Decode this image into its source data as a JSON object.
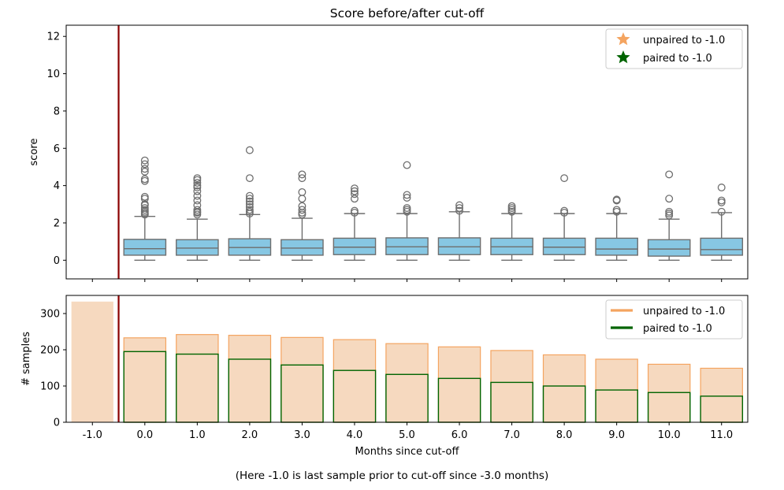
{
  "footnote": "(Here -1.0 is last sample prior to cut-off since -3.0 months)",
  "colors": {
    "box_fill": "#87c7e3",
    "box_edge": "#6e6e6e",
    "cutoff_line": "#8b0000",
    "unpaired": "#f4a460",
    "unpaired_fill": "#f6d9bf",
    "paired": "#006400"
  },
  "chart_data": [
    {
      "type": "box",
      "title": "Score before/after cut-off",
      "xlabel": "",
      "ylabel": "score",
      "ylim": [
        -1,
        12.6
      ],
      "yticks": [
        0,
        2,
        4,
        6,
        8,
        10,
        12
      ],
      "categories": [
        "-1.0",
        "0.0",
        "1.0",
        "2.0",
        "3.0",
        "4.0",
        "5.0",
        "6.0",
        "7.0",
        "8.0",
        "9.0",
        "10.0",
        "11.0"
      ],
      "cutoff_between": [
        "-1.0",
        "0.0"
      ],
      "boxes": [
        {
          "category": "-1.0",
          "present": false
        },
        {
          "category": "0.0",
          "present": true,
          "whisker_low": 0,
          "q1": 0.27,
          "median": 0.62,
          "q3": 1.12,
          "whisker_high": 2.35,
          "outliers": [
            2.45,
            2.52,
            2.6,
            2.7,
            2.8,
            2.95,
            3.0,
            3.3,
            3.4,
            4.25,
            4.35,
            4.75,
            4.9,
            5.15,
            5.35
          ]
        },
        {
          "category": "1.0",
          "present": true,
          "whisker_low": 0,
          "q1": 0.27,
          "median": 0.65,
          "q3": 1.1,
          "whisker_high": 2.2,
          "outliers": [
            2.45,
            2.55,
            2.6,
            2.7,
            2.95,
            3.2,
            3.45,
            3.7,
            3.9,
            4.0,
            4.15,
            4.3,
            4.4
          ]
        },
        {
          "category": "2.0",
          "present": true,
          "whisker_low": 0,
          "q1": 0.27,
          "median": 0.68,
          "q3": 1.15,
          "whisker_high": 2.45,
          "outliers": [
            2.5,
            2.6,
            2.7,
            2.85,
            3.0,
            3.15,
            3.3,
            3.45,
            4.4,
            5.9
          ]
        },
        {
          "category": "3.0",
          "present": true,
          "whisker_low": 0,
          "q1": 0.27,
          "median": 0.65,
          "q3": 1.1,
          "whisker_high": 2.25,
          "outliers": [
            2.45,
            2.55,
            2.7,
            2.9,
            3.3,
            3.65,
            4.4,
            4.6
          ]
        },
        {
          "category": "4.0",
          "present": true,
          "whisker_low": 0,
          "q1": 0.3,
          "median": 0.7,
          "q3": 1.18,
          "whisker_high": 2.5,
          "outliers": [
            2.55,
            2.65,
            3.3,
            3.55,
            3.7,
            3.85
          ]
        },
        {
          "category": "5.0",
          "present": true,
          "whisker_low": 0,
          "q1": 0.3,
          "median": 0.72,
          "q3": 1.2,
          "whisker_high": 2.5,
          "outliers": [
            2.6,
            2.7,
            2.8,
            3.35,
            3.5,
            5.1
          ]
        },
        {
          "category": "6.0",
          "present": true,
          "whisker_low": 0,
          "q1": 0.3,
          "median": 0.72,
          "q3": 1.2,
          "whisker_high": 2.6,
          "outliers": [
            2.65,
            2.8,
            2.95
          ]
        },
        {
          "category": "7.0",
          "present": true,
          "whisker_low": 0,
          "q1": 0.3,
          "median": 0.72,
          "q3": 1.18,
          "whisker_high": 2.5,
          "outliers": [
            2.6,
            2.7,
            2.8,
            2.9
          ]
        },
        {
          "category": "8.0",
          "present": true,
          "whisker_low": 0,
          "q1": 0.3,
          "median": 0.7,
          "q3": 1.18,
          "whisker_high": 2.5,
          "outliers": [
            2.55,
            2.65,
            4.4
          ]
        },
        {
          "category": "9.0",
          "present": true,
          "whisker_low": 0,
          "q1": 0.27,
          "median": 0.6,
          "q3": 1.18,
          "whisker_high": 2.5,
          "outliers": [
            2.6,
            2.7,
            3.2,
            3.25
          ]
        },
        {
          "category": "10.0",
          "present": true,
          "whisker_low": 0,
          "q1": 0.22,
          "median": 0.6,
          "q3": 1.1,
          "whisker_high": 2.2,
          "outliers": [
            2.4,
            2.5,
            2.6,
            3.3,
            4.6
          ]
        },
        {
          "category": "11.0",
          "present": true,
          "whisker_low": 0,
          "q1": 0.27,
          "median": 0.57,
          "q3": 1.18,
          "whisker_high": 2.55,
          "outliers": [
            2.6,
            3.1,
            3.2,
            3.9
          ]
        }
      ],
      "legend": {
        "position": "top-right",
        "entries": [
          {
            "label": "unpaired to -1.0",
            "marker": "star",
            "color": "#f4a460"
          },
          {
            "label": "paired to -1.0",
            "marker": "star",
            "color": "#006400"
          }
        ]
      }
    },
    {
      "type": "bar",
      "title": "",
      "xlabel": "Months since cut-off",
      "ylabel": "# samples",
      "ylim": [
        0,
        350
      ],
      "yticks": [
        0,
        100,
        200,
        300
      ],
      "categories": [
        "-1.0",
        "0.0",
        "1.0",
        "2.0",
        "3.0",
        "4.0",
        "5.0",
        "6.0",
        "7.0",
        "8.0",
        "9.0",
        "10.0",
        "11.0"
      ],
      "series": [
        {
          "name": "unpaired to -1.0",
          "values": [
            333,
            233,
            242,
            240,
            234,
            228,
            217,
            208,
            198,
            186,
            174,
            160,
            149
          ]
        },
        {
          "name": "paired to -1.0",
          "values": [
            0,
            195,
            188,
            174,
            158,
            143,
            132,
            121,
            110,
            100,
            89,
            82,
            72
          ]
        }
      ],
      "legend": {
        "position": "top-right",
        "entries": [
          {
            "label": "unpaired to -1.0",
            "marker": "line",
            "color": "#f4a460"
          },
          {
            "label": "paired to -1.0",
            "marker": "line",
            "color": "#006400"
          }
        ]
      }
    }
  ]
}
